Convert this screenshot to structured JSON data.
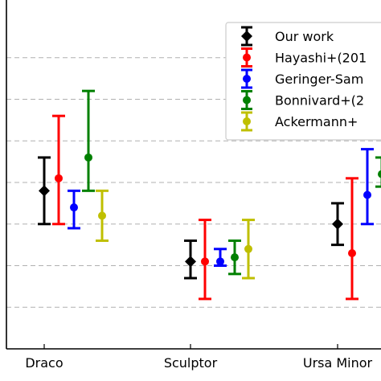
{
  "chart_data": {
    "type": "errorbar",
    "categories": [
      "Draco",
      "Sculptor",
      "Ursa Minor"
    ],
    "ylim": [
      0,
      8
    ],
    "grid": true,
    "grid_style": "dashed-horizontal",
    "legend_position": "top-right",
    "series": [
      {
        "name": "Our work",
        "color": "#000000",
        "marker": "diamond",
        "points": [
          {
            "y": 3.8,
            "lo": 3.0,
            "hi": 4.6
          },
          {
            "y": 2.1,
            "lo": 1.7,
            "hi": 2.6
          },
          {
            "y": 3.0,
            "lo": 2.5,
            "hi": 3.5
          }
        ]
      },
      {
        "name": "Hayashi+(201",
        "color": "#ff0000",
        "marker": "circle",
        "points": [
          {
            "y": 4.1,
            "lo": 3.0,
            "hi": 5.6
          },
          {
            "y": 2.1,
            "lo": 1.2,
            "hi": 3.1
          },
          {
            "y": 2.3,
            "lo": 1.2,
            "hi": 4.1
          }
        ]
      },
      {
        "name": "Geringer-Sam",
        "color": "#0000ff",
        "marker": "circle",
        "points": [
          {
            "y": 3.4,
            "lo": 2.9,
            "hi": 3.8
          },
          {
            "y": 2.1,
            "lo": 2.0,
            "hi": 2.4
          },
          {
            "y": 3.7,
            "lo": 3.0,
            "hi": 4.8
          }
        ]
      },
      {
        "name": "Bonnivard+(2",
        "color": "#008000",
        "marker": "circle",
        "points": [
          {
            "y": 4.6,
            "lo": 3.8,
            "hi": 6.2
          },
          {
            "y": 2.2,
            "lo": 1.8,
            "hi": 2.6
          },
          {
            "y": 4.2,
            "lo": 3.9,
            "hi": 4.6
          }
        ]
      },
      {
        "name": "Ackermann+",
        "color": "#bfbf00",
        "marker": "circle",
        "points": [
          {
            "y": 3.2,
            "lo": 2.6,
            "hi": 3.8
          },
          {
            "y": 2.4,
            "lo": 1.7,
            "hi": 3.1
          }
        ]
      }
    ]
  }
}
